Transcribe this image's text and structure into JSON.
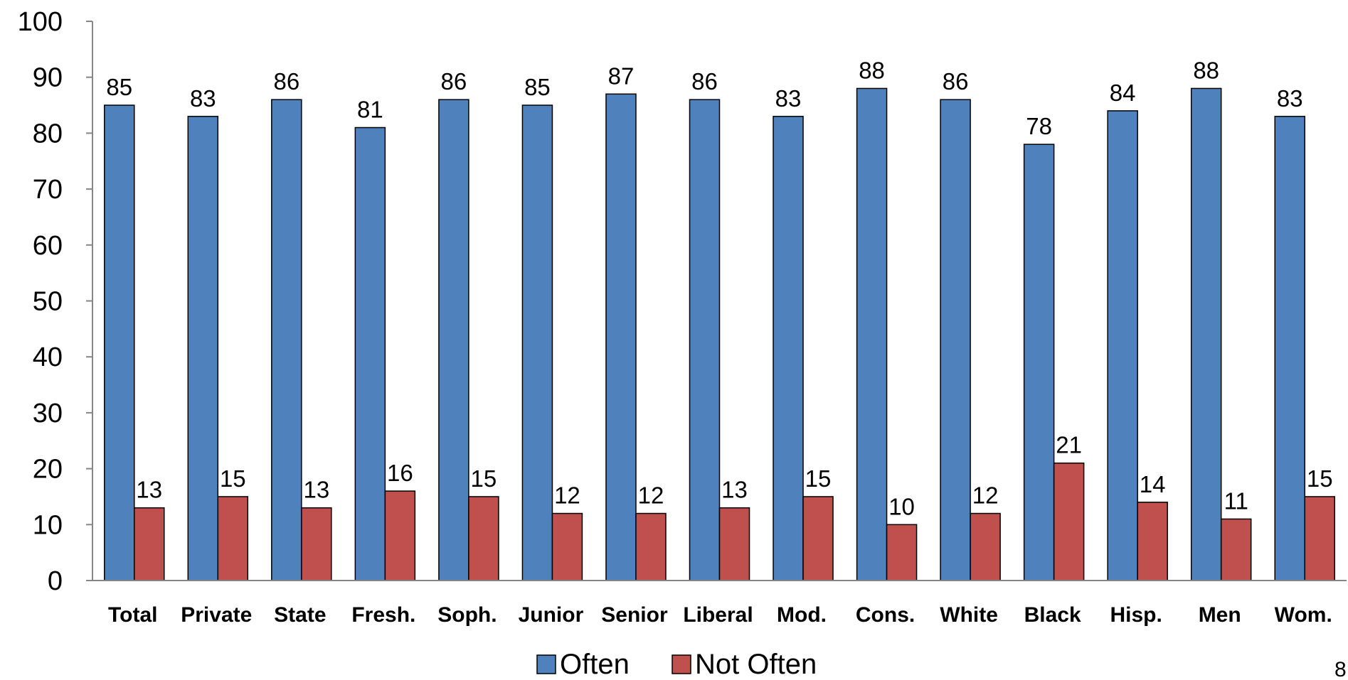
{
  "chart_data": {
    "type": "bar",
    "title": "",
    "xlabel": "",
    "ylabel": "",
    "ylim": [
      0,
      100
    ],
    "yticks": [
      0,
      10,
      20,
      30,
      40,
      50,
      60,
      70,
      80,
      90,
      100
    ],
    "grid": false,
    "legend_position": "bottom",
    "categories": [
      "Total",
      "Private",
      "State",
      "Fresh.",
      "Soph.",
      "Junior",
      "Senior",
      "Liberal",
      "Mod.",
      "Cons.",
      "White",
      "Black",
      "Hisp.",
      "Men",
      "Wom."
    ],
    "series": [
      {
        "name": "Often",
        "color": "#4f81bd",
        "values": [
          85,
          83,
          86,
          81,
          86,
          85,
          87,
          86,
          83,
          88,
          86,
          78,
          84,
          88,
          83
        ]
      },
      {
        "name": "Not Often",
        "color": "#c0504d",
        "values": [
          13,
          15,
          13,
          16,
          15,
          12,
          12,
          13,
          15,
          10,
          12,
          21,
          14,
          11,
          15
        ]
      }
    ]
  },
  "page_number": "8"
}
